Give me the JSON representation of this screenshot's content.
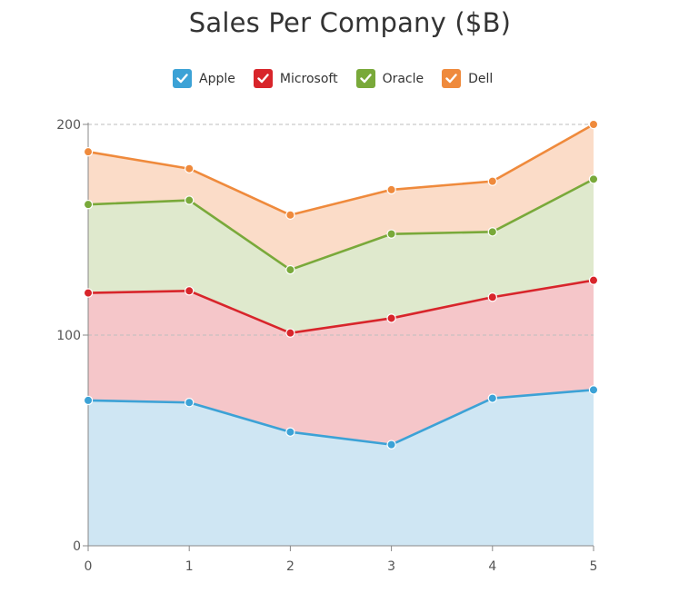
{
  "chart_data": {
    "type": "area",
    "stacked": true,
    "title": "Sales Per Company ($B)",
    "x": [
      0,
      1,
      2,
      3,
      4,
      5
    ],
    "x_tick_labels": [
      "0",
      "1",
      "2",
      "3",
      "4",
      "5"
    ],
    "y_tick_labels": [
      "0",
      "100",
      "200"
    ],
    "ylim": [
      0,
      200
    ],
    "xlim": [
      0,
      5
    ],
    "grid": "horizontal dashed",
    "legend_placement": "top-center",
    "series": [
      {
        "name": "Apple",
        "values": [
          69,
          68,
          54,
          48,
          70,
          74
        ],
        "color": "#3ca2d6",
        "fill": "#cfe6f3"
      },
      {
        "name": "Microsoft",
        "values": [
          51,
          53,
          47,
          60,
          48,
          52
        ],
        "color": "#d8252b",
        "fill": "#f5c6c9"
      },
      {
        "name": "Oracle",
        "values": [
          42,
          43,
          30,
          40,
          31,
          48
        ],
        "color": "#79a93a",
        "fill": "#dfe9cd"
      },
      {
        "name": "Dell",
        "values": [
          25,
          15,
          26,
          21,
          24,
          26
        ],
        "color": "#ef8a3c",
        "fill": "#fbdcc8"
      }
    ]
  }
}
